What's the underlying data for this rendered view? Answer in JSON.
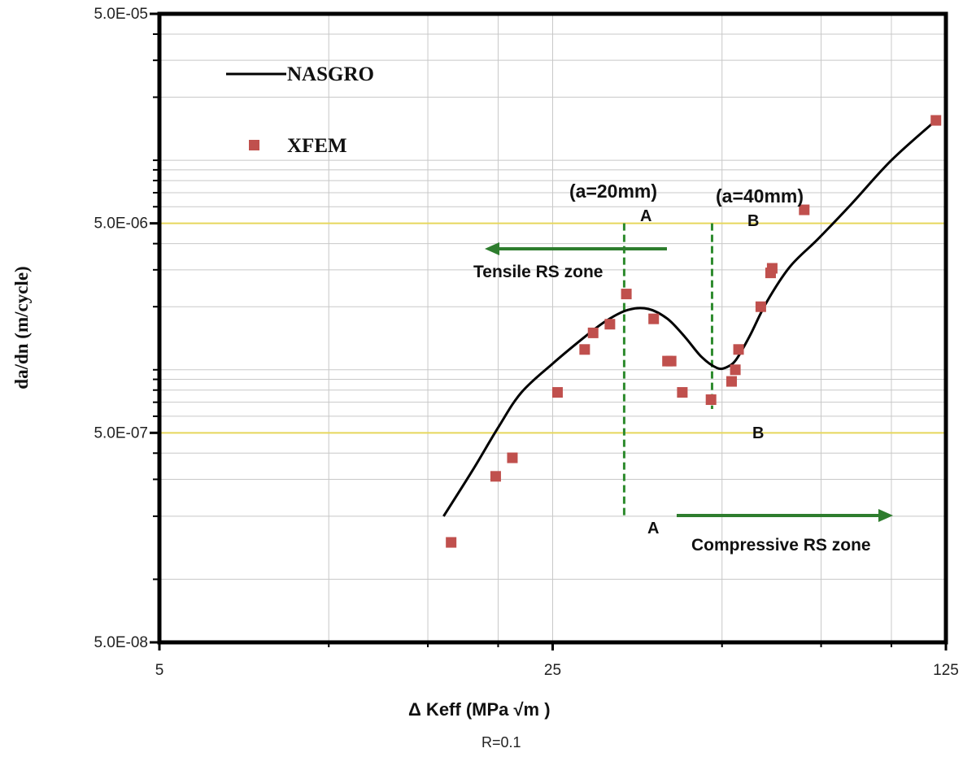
{
  "chart_data": {
    "type": "scatter",
    "x_scale": "log",
    "y_scale": "log",
    "xlim": [
      5,
      125
    ],
    "ylim": [
      5e-08,
      5e-05
    ],
    "xticks": [
      "5",
      "25",
      "125"
    ],
    "yticks": [
      "5.0E-08",
      "5.0E-07",
      "5.0E-06",
      "5.0E-05"
    ],
    "xlabel": "Δ Keff  (MPa √m )",
    "xlabel_sub": "R=0.1",
    "ylabel": "da/dn  (m/cycle)",
    "grid": true,
    "legend_position": "top-left",
    "series": [
      {
        "name": "NASGRO",
        "kind": "line",
        "color": "#000000",
        "points": [
          [
            16.0,
            2e-07
          ],
          [
            18.0,
            3.3e-07
          ],
          [
            20.0,
            5.3e-07
          ],
          [
            22.0,
            7.8e-07
          ],
          [
            25.0,
            1.07e-06
          ],
          [
            28.0,
            1.38e-06
          ],
          [
            31.0,
            1.7e-06
          ],
          [
            34.0,
            1.93e-06
          ],
          [
            37.0,
            1.95e-06
          ],
          [
            40.0,
            1.75e-06
          ],
          [
            43.0,
            1.43e-06
          ],
          [
            46.0,
            1.15e-06
          ],
          [
            49.0,
            1.02e-06
          ],
          [
            51.0,
            1.03e-06
          ],
          [
            53.0,
            1.12e-06
          ],
          [
            56.0,
            1.45e-06
          ],
          [
            60.0,
            2.1e-06
          ],
          [
            66.0,
            3.1e-06
          ],
          [
            74.0,
            4.2e-06
          ],
          [
            85.0,
            6.2e-06
          ],
          [
            100.0,
            1e-05
          ],
          [
            120.0,
            1.55e-05
          ]
        ]
      },
      {
        "name": "XFEM",
        "kind": "scatter",
        "color": "#c0504d",
        "points": [
          [
            16.5,
            1.5e-07
          ],
          [
            19.8,
            3.1e-07
          ],
          [
            21.2,
            3.8e-07
          ],
          [
            25.5,
            7.8e-07
          ],
          [
            28.5,
            1.25e-06
          ],
          [
            29.5,
            1.5e-06
          ],
          [
            31.6,
            1.65e-06
          ],
          [
            33.8,
            2.3e-06
          ],
          [
            37.8,
            1.75e-06
          ],
          [
            40.0,
            1.1e-06
          ],
          [
            40.6,
            1.1e-06
          ],
          [
            42.5,
            7.8e-07
          ],
          [
            47.8,
            7.2e-07
          ],
          [
            52.0,
            8.8e-07
          ],
          [
            52.8,
            1e-06
          ],
          [
            53.5,
            1.25e-06
          ],
          [
            58.6,
            2e-06
          ],
          [
            61.0,
            2.9e-06
          ],
          [
            61.4,
            3.05e-06
          ],
          [
            70.0,
            5.8e-06
          ],
          [
            120.0,
            1.55e-05
          ]
        ]
      }
    ],
    "reference_lines": [
      {
        "y": 5e-06,
        "color": "#e6d75c"
      },
      {
        "y": 5e-07,
        "color": "#e6d75c"
      }
    ],
    "annotations": {
      "marker_a": {
        "x": 33.5,
        "label_top": "A",
        "label_bottom": "A",
        "crack_length": "(a=20mm)",
        "color": "#2e8b2e"
      },
      "marker_b": {
        "x": 48.0,
        "label_top": "B",
        "label_bottom": "B",
        "crack_length": "(a=40mm)",
        "color": "#2e8b2e"
      },
      "tensile_zone": "Tensile RS zone",
      "compressive_zone": "Compressive RS zone"
    }
  }
}
